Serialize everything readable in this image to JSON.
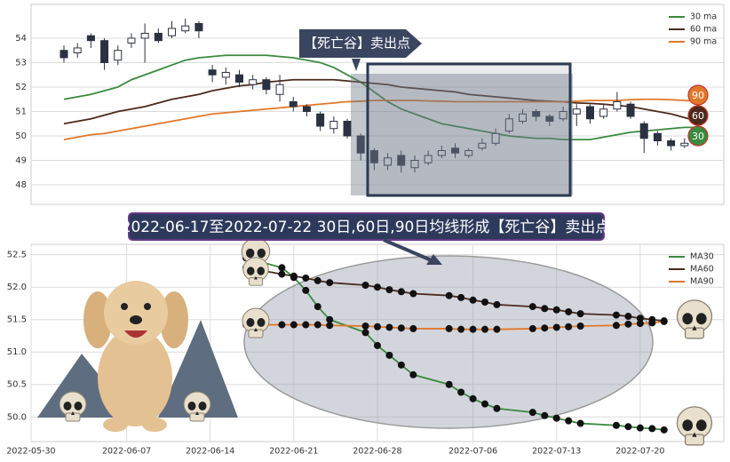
{
  "chart_data": [
    {
      "type": "candlestick",
      "annotation": "【死亡谷】卖出点",
      "open": [
        53.5,
        53.4,
        54.1,
        53.9,
        53.1,
        53.8,
        54.0,
        54.2,
        54.1,
        54.3,
        54.6,
        52.7,
        52.4,
        52.5,
        52.1,
        52.3,
        51.7,
        51.4,
        51.2,
        50.9,
        50.3,
        50.6,
        50.0,
        49.4,
        48.8,
        49.2,
        48.7,
        48.9,
        49.2,
        49.5,
        49.2,
        49.5,
        49.7,
        50.2,
        50.6,
        51.0,
        50.8,
        50.7,
        50.9,
        51.2,
        50.8,
        51.1,
        51.3,
        50.5,
        50.1,
        49.8,
        49.6,
        49.7
      ],
      "high": [
        53.7,
        53.8,
        54.2,
        54.0,
        53.7,
        54.2,
        54.6,
        54.4,
        54.7,
        54.8,
        54.7,
        52.9,
        52.8,
        52.7,
        52.5,
        52.4,
        52.5,
        51.6,
        51.3,
        51.0,
        50.8,
        50.7,
        50.1,
        49.5,
        49.3,
        49.4,
        49.2,
        49.4,
        49.6,
        49.7,
        49.5,
        49.9,
        50.3,
        50.9,
        51.1,
        51.1,
        50.9,
        51.2,
        51.3,
        51.3,
        51.3,
        51.8,
        51.4,
        50.6,
        50.2,
        49.9,
        49.9,
        50.1
      ],
      "low": [
        53.0,
        53.2,
        53.6,
        52.7,
        52.9,
        53.6,
        53.0,
        53.8,
        54.0,
        54.2,
        54.0,
        52.2,
        52.1,
        52.0,
        51.9,
        51.7,
        51.4,
        51.0,
        50.8,
        50.2,
        50.1,
        49.9,
        49.0,
        48.6,
        48.6,
        48.5,
        48.5,
        48.8,
        49.1,
        49.1,
        49.1,
        49.4,
        49.6,
        50.1,
        50.5,
        50.6,
        50.4,
        50.6,
        50.4,
        50.5,
        50.7,
        51.0,
        50.7,
        49.3,
        49.6,
        49.4,
        49.5,
        49.6
      ],
      "close": [
        53.2,
        53.6,
        53.9,
        53.0,
        53.5,
        54.0,
        54.2,
        53.9,
        54.4,
        54.5,
        54.3,
        52.5,
        52.6,
        52.2,
        52.3,
        51.9,
        52.1,
        51.2,
        51.0,
        50.4,
        50.6,
        50.0,
        49.3,
        48.9,
        49.1,
        48.8,
        49.0,
        49.2,
        49.4,
        49.3,
        49.4,
        49.7,
        50.1,
        50.7,
        50.9,
        50.8,
        50.6,
        51.0,
        51.1,
        50.7,
        51.1,
        51.4,
        50.8,
        49.9,
        49.8,
        49.6,
        49.7,
        49.9
      ],
      "series": [
        {
          "name": "30 ma",
          "badge": "30",
          "color": "#3a8a3f",
          "values": [
            51.5,
            51.6,
            51.7,
            51.85,
            52.0,
            52.3,
            52.5,
            52.7,
            52.9,
            53.1,
            53.2,
            53.25,
            53.3,
            53.3,
            53.3,
            53.3,
            53.25,
            53.2,
            53.1,
            53.0,
            52.8,
            52.5,
            52.2,
            51.8,
            51.4,
            51.1,
            50.9,
            50.7,
            50.5,
            50.4,
            50.3,
            50.2,
            50.1,
            50.0,
            49.95,
            49.9,
            49.9,
            49.85,
            49.85,
            49.85,
            49.95,
            50.05,
            50.15,
            50.2,
            50.25,
            50.3,
            50.35,
            50.35
          ]
        },
        {
          "name": "60 ma",
          "badge": "60",
          "color": "#4b2a1c",
          "values": [
            50.5,
            50.6,
            50.7,
            50.85,
            51.0,
            51.1,
            51.2,
            51.35,
            51.5,
            51.6,
            51.7,
            51.85,
            51.95,
            52.05,
            52.1,
            52.2,
            52.25,
            52.3,
            52.3,
            52.3,
            52.3,
            52.25,
            52.2,
            52.15,
            52.1,
            52.0,
            51.95,
            51.9,
            51.85,
            51.8,
            51.7,
            51.65,
            51.6,
            51.55,
            51.5,
            51.45,
            51.42,
            51.4,
            51.35,
            51.33,
            51.3,
            51.25,
            51.2,
            51.1,
            51.0,
            50.9,
            50.75,
            50.6
          ]
        },
        {
          "name": "90 ma",
          "badge": "90",
          "color": "#e0782a",
          "values": [
            49.85,
            49.95,
            50.05,
            50.1,
            50.2,
            50.3,
            50.4,
            50.5,
            50.6,
            50.7,
            50.8,
            50.9,
            50.95,
            51.0,
            51.05,
            51.1,
            51.15,
            51.2,
            51.25,
            51.3,
            51.35,
            51.4,
            51.42,
            51.45,
            51.45,
            51.45,
            51.45,
            51.43,
            51.42,
            51.4,
            51.4,
            51.4,
            51.4,
            51.4,
            51.4,
            51.4,
            51.4,
            51.4,
            51.42,
            51.45,
            51.45,
            51.45,
            51.48,
            51.5,
            51.5,
            51.48,
            51.45,
            51.42
          ]
        }
      ],
      "ylim": [
        47.2,
        55.38
      ],
      "yticks": [
        48,
        49,
        50,
        51,
        52,
        53,
        54
      ],
      "grid": true,
      "legend": "upper right"
    },
    {
      "type": "line",
      "title": "2022-06-17至2022-07-22 30日,60日,90日均线形成【死亡谷】卖出点",
      "x": [
        "2022-06-17",
        "2022-06-20",
        "2022-06-21",
        "2022-06-22",
        "2022-06-23",
        "2022-06-24",
        "2022-06-27",
        "2022-06-28",
        "2022-06-29",
        "2022-06-30",
        "2022-07-01",
        "2022-07-04",
        "2022-07-05",
        "2022-07-06",
        "2022-07-07",
        "2022-07-08",
        "2022-07-11",
        "2022-07-12",
        "2022-07-13",
        "2022-07-14",
        "2022-07-15",
        "2022-07-18",
        "2022-07-19",
        "2022-07-20",
        "2022-07-21",
        "2022-07-22"
      ],
      "series": [
        {
          "name": "MA30",
          "color": "#3a8a3f",
          "values": [
            52.45,
            52.3,
            52.15,
            51.95,
            51.7,
            51.5,
            51.3,
            51.1,
            50.95,
            50.8,
            50.65,
            50.5,
            50.38,
            50.28,
            50.2,
            50.13,
            50.07,
            50.02,
            49.98,
            49.94,
            49.9,
            49.87,
            49.85,
            49.83,
            49.82,
            49.8
          ]
        },
        {
          "name": "MA60",
          "color": "#4b2a1c",
          "values": [
            52.3,
            52.2,
            52.17,
            52.14,
            52.1,
            52.07,
            52.03,
            52.0,
            51.96,
            51.93,
            51.9,
            51.87,
            51.84,
            51.8,
            51.77,
            51.73,
            51.7,
            51.67,
            51.65,
            51.62,
            51.59,
            51.57,
            51.55,
            51.52,
            51.5,
            51.48
          ]
        },
        {
          "name": "MA90",
          "color": "#e0782a",
          "values": [
            51.42,
            51.42,
            51.42,
            51.42,
            51.42,
            51.41,
            51.4,
            51.39,
            51.38,
            51.37,
            51.36,
            51.36,
            51.35,
            51.35,
            51.35,
            51.35,
            51.36,
            51.37,
            51.38,
            51.39,
            51.4,
            51.41,
            51.43,
            51.44,
            51.45,
            51.47
          ]
        }
      ],
      "xlim": [
        "2022-05-30",
        "2022-07-27"
      ],
      "xticks": [
        "2022-05-30",
        "2022-06-07",
        "2022-06-14",
        "2022-06-21",
        "2022-06-28",
        "2022-07-06",
        "2022-07-13",
        "2022-07-20"
      ],
      "ylim": [
        49.62,
        52.66
      ],
      "yticks": [
        {
          "value": 50,
          "label": "50.0"
        },
        {
          "value": 50.5,
          "label": "50.5"
        },
        {
          "value": 51,
          "label": "51.0"
        },
        {
          "value": 51.5,
          "label": "51.5"
        },
        {
          "value": 52,
          "label": "52.0"
        },
        {
          "value": 52.5,
          "label": "52.5"
        }
      ],
      "grid": true,
      "legend": "upper right"
    }
  ]
}
